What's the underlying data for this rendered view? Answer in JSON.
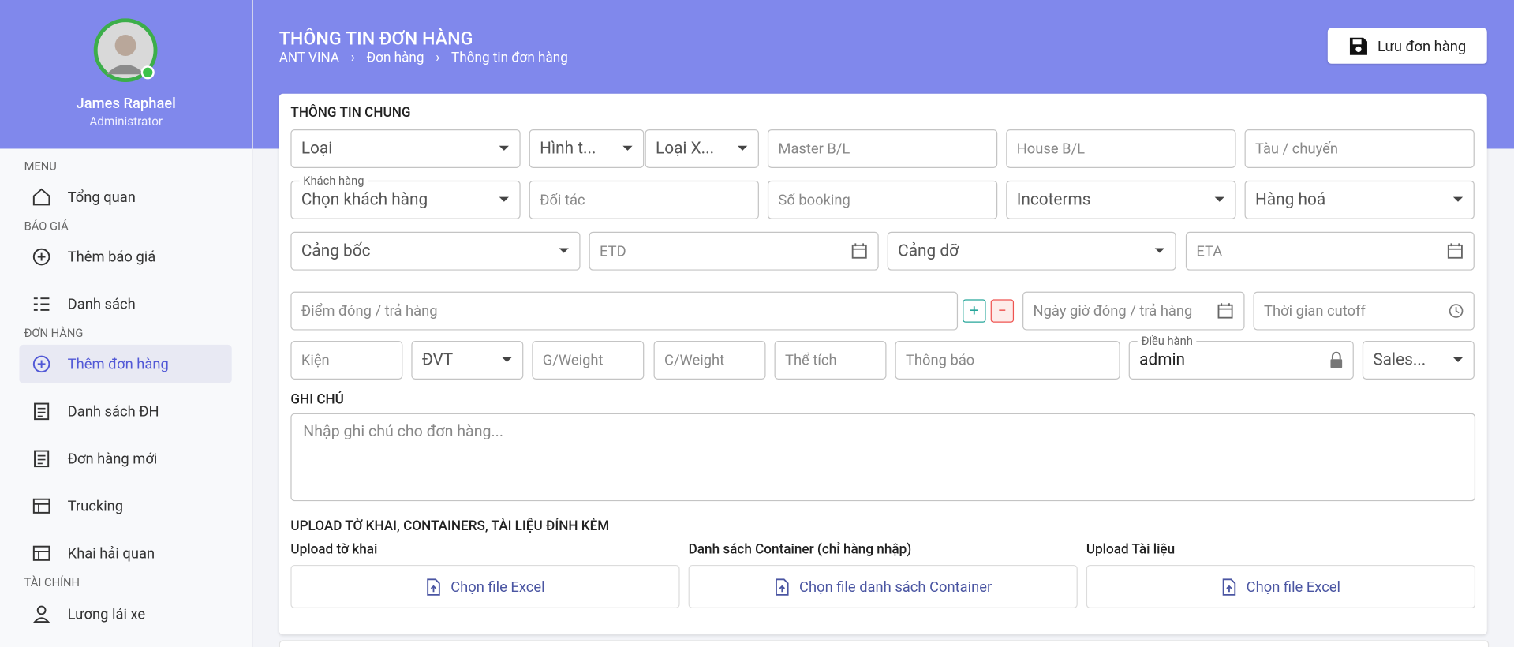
{
  "sidebar": {
    "user": {
      "name": "James Raphael",
      "role": "Administrator"
    },
    "sections": [
      {
        "title": "MENU",
        "items": [
          "Tổng quan"
        ]
      },
      {
        "title": "BÁO GIÁ",
        "items": [
          "Thêm báo giá",
          "Danh sách"
        ]
      },
      {
        "title": "ĐƠN HÀNG",
        "items": [
          "Thêm đơn hàng",
          "Danh sách ĐH",
          "Đơn hàng mới",
          "Trucking",
          "Khai hải quan"
        ]
      },
      {
        "title": "TÀI CHÍNH",
        "items": [
          "Lương lái xe"
        ]
      }
    ]
  },
  "header": {
    "title": "THÔNG TIN ĐƠN HÀNG",
    "breadcrumbs": [
      "ANT VINA",
      "Đơn hàng",
      "Thông tin đơn hàng"
    ],
    "save_button": "Lưu đơn hàng"
  },
  "form": {
    "section_title": "THÔNG TIN CHUNG",
    "fields": [
      {
        "placeholder": "Loại"
      },
      {
        "placeholder": "Hình t..."
      },
      {
        "placeholder": "Loại X..."
      },
      {
        "placeholder": "Master B/L"
      },
      {
        "placeholder": "House B/L"
      },
      {
        "placeholder": "Tàu / chuyến"
      },
      {
        "label": "Khách hàng",
        "value": "Chọn khách hàng"
      },
      {
        "placeholder": "Đối tác"
      },
      {
        "placeholder": "Số booking"
      },
      {
        "placeholder": "Incoterms"
      },
      {
        "placeholder": "Hàng hoá"
      },
      {
        "placeholder": "Cảng bốc"
      },
      {
        "placeholder": "ETD"
      },
      {
        "placeholder": "Cảng dỡ"
      },
      {
        "placeholder": "ETA"
      },
      {
        "placeholder": "Điểm đóng / trả hàng"
      },
      {
        "placeholder": "Ngày giờ đóng / trả hàng"
      },
      {
        "placeholder": "Thời gian cutoff"
      },
      {
        "placeholder": "Kiện"
      },
      {
        "placeholder": "ĐVT"
      },
      {
        "placeholder": "G/Weight"
      },
      {
        "placeholder": "C/Weight"
      },
      {
        "placeholder": "Thể tích"
      },
      {
        "placeholder": "Thông báo"
      },
      {
        "label": "Điều hành",
        "value": "admin"
      },
      {
        "placeholder": "Sales..."
      }
    ],
    "note_title": "GHI CHÚ",
    "note_placeholder": "Nhập ghi chú cho đơn hàng...",
    "upload": {
      "title": "UPLOAD TỜ KHAI, CONTAINERS, TÀI LIỆU ĐÍNH KÈM",
      "columns": [
        {
          "label": "Upload tờ khai",
          "button": "Chọn file Excel"
        },
        {
          "label": "Danh sách Container (chỉ hàng nhập)",
          "button": "Chọn file danh sách Container"
        },
        {
          "label": "Upload Tài liệu",
          "button": "Chọn file Excel"
        }
      ]
    }
  }
}
